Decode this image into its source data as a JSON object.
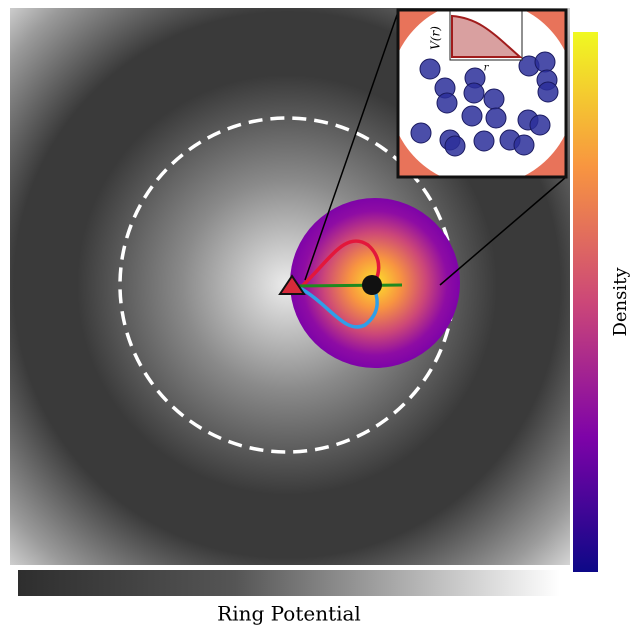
{
  "colorbar": {
    "label": "Density"
  },
  "potential_bar": {
    "label": "Ring Potential"
  },
  "inset": {
    "y_label": "V(r)",
    "x_label": "r"
  }
}
